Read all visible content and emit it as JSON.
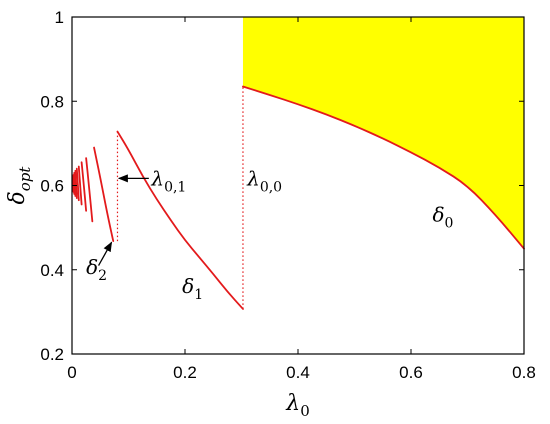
{
  "chart_data": {
    "type": "line",
    "xlabel": "λ",
    "xlabel_sub": "0",
    "ylabel": "δ",
    "ylabel_sub": "opt",
    "xlim": [
      0,
      0.8
    ],
    "ylim": [
      0.2,
      1.0
    ],
    "xticks": [
      0,
      0.2,
      0.4,
      0.6,
      0.8
    ],
    "xtick_labels": [
      "0",
      "0.2",
      "0.4",
      "0.6",
      "0.8"
    ],
    "yticks": [
      0.2,
      0.4,
      0.6,
      0.8,
      1.0
    ],
    "ytick_labels": [
      "0.2",
      "0.4",
      "0.6",
      "0.8",
      "1"
    ],
    "grid": false,
    "colors": {
      "curve": "#e31a1c",
      "fill": "#ffff00",
      "axes": "#000000"
    },
    "fill_region": {
      "x_from": 0.3026,
      "to_y": 1.0,
      "lower_series": "δ0"
    },
    "series": [
      {
        "name": "δ0",
        "x": [
          0.3026,
          0.35,
          0.4,
          0.45,
          0.5,
          0.55,
          0.6,
          0.65,
          0.7,
          0.75,
          0.8
        ],
        "y": [
          0.835,
          0.815,
          0.793,
          0.769,
          0.742,
          0.712,
          0.679,
          0.643,
          0.6,
          0.53,
          0.45
        ]
      },
      {
        "name": "δ1",
        "x": [
          0.0805,
          0.1,
          0.125,
          0.15,
          0.175,
          0.2,
          0.225,
          0.25,
          0.275,
          0.3026
        ],
        "y": [
          0.728,
          0.685,
          0.622,
          0.567,
          0.517,
          0.47,
          0.43,
          0.39,
          0.348,
          0.307
        ]
      },
      {
        "name": "δ2",
        "x": [
          0.039,
          0.05,
          0.062,
          0.073
        ],
        "y": [
          0.69,
          0.619,
          0.536,
          0.468
        ]
      },
      {
        "name": "branch3",
        "x": [
          0.025,
          0.03,
          0.036
        ],
        "y": [
          0.665,
          0.6,
          0.515
        ]
      },
      {
        "name": "branch4",
        "x": [
          0.017,
          0.021,
          0.025
        ],
        "y": [
          0.655,
          0.6,
          0.54
        ]
      },
      {
        "name": "branch5",
        "x": [
          0.012,
          0.0145,
          0.017
        ],
        "y": [
          0.645,
          0.6,
          0.555
        ]
      },
      {
        "name": "branch6",
        "x": [
          0.0085,
          0.0105,
          0.012
        ],
        "y": [
          0.64,
          0.6,
          0.565
        ]
      },
      {
        "name": "branch7",
        "x": [
          0.006,
          0.0075,
          0.0085
        ],
        "y": [
          0.635,
          0.6,
          0.57
        ]
      },
      {
        "name": "branch8",
        "x": [
          0.004,
          0.005,
          0.006
        ],
        "y": [
          0.63,
          0.6,
          0.575
        ]
      },
      {
        "name": "branch9",
        "x": [
          0.0025,
          0.0032,
          0.004
        ],
        "y": [
          0.625,
          0.6,
          0.58
        ]
      },
      {
        "name": "branch10",
        "x": [
          0.0012,
          0.002,
          0.0025
        ],
        "y": [
          0.62,
          0.6,
          0.585
        ]
      }
    ],
    "dotted_lines": [
      {
        "name": "λ0,0",
        "x": 0.3026,
        "y_from": 0.307,
        "y_to": 0.835
      },
      {
        "name": "λ0,1",
        "x": 0.0805,
        "y_from": 0.468,
        "y_to": 0.728
      }
    ],
    "annotations": [
      {
        "id": "delta0",
        "main": "δ",
        "sub": "0",
        "x": 0.638,
        "y": 0.515
      },
      {
        "id": "delta1",
        "main": "δ",
        "sub": "1",
        "x": 0.195,
        "y": 0.345
      },
      {
        "id": "delta2",
        "main": "δ",
        "sub": "2",
        "x": 0.025,
        "y": 0.39
      },
      {
        "id": "lambda00",
        "main": "λ",
        "sub": "0,0",
        "x": 0.31,
        "y": 0.6
      },
      {
        "id": "lambda01",
        "main": "λ",
        "sub": "0,1",
        "x": 0.1405,
        "y": 0.6
      }
    ],
    "arrows": [
      {
        "id": "arrow-lambda01",
        "from": [
          0.136,
          0.617
        ],
        "to": [
          0.083,
          0.617
        ]
      },
      {
        "id": "arrow-delta2",
        "from": [
          0.047,
          0.41
        ],
        "to": [
          0.07,
          0.465
        ]
      }
    ]
  }
}
